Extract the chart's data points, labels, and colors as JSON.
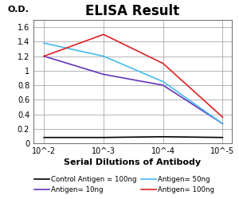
{
  "title": "ELISA Result",
  "ylabel": "O.D.",
  "xlabel": "Serial Dilutions of Antibody",
  "x_values": [
    0.01,
    0.001,
    0.0001,
    1e-05
  ],
  "black_line": {
    "label": "Control Antigen = 100ng",
    "color": "#000000",
    "y": [
      0.08,
      0.08,
      0.09,
      0.08
    ]
  },
  "purple_line": {
    "label": "Antigen= 10ng",
    "color": "#6633bb",
    "y": [
      1.2,
      0.95,
      0.8,
      0.27
    ]
  },
  "blue_line": {
    "label": "Antigen= 50ng",
    "color": "#44bbee",
    "y": [
      1.38,
      1.2,
      0.85,
      0.27
    ]
  },
  "red_line": {
    "label": "Antigen= 100ng",
    "color": "#dd2222",
    "y": [
      1.2,
      1.5,
      1.1,
      0.36
    ]
  },
  "ylim": [
    0,
    1.7
  ],
  "yticks": [
    0,
    0.2,
    0.4,
    0.6,
    0.8,
    1.0,
    1.2,
    1.4,
    1.6
  ],
  "ytick_labels": [
    "0",
    "0.2",
    "0.4",
    "0.6",
    "0.8",
    "1",
    "1.2",
    "1.4",
    "1.6"
  ],
  "xtick_labels": [
    "10^-2",
    "10^-3",
    "10^-4",
    "10^-5"
  ],
  "background_color": "#ffffff",
  "title_fontsize": 12,
  "legend_fontsize": 6.2,
  "axis_label_fontsize": 8,
  "tick_fontsize": 7
}
